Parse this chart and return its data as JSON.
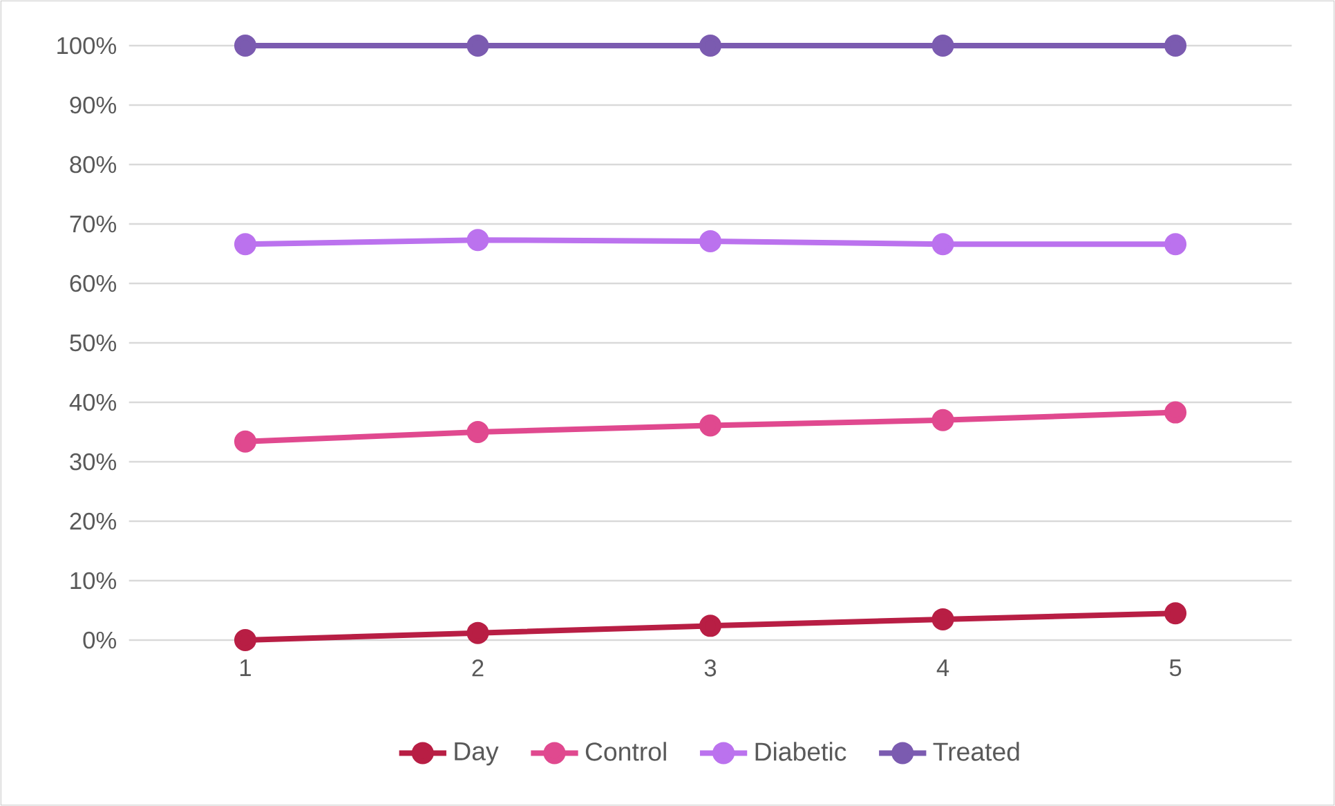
{
  "chart_data": {
    "type": "line",
    "categories": [
      "1",
      "2",
      "3",
      "4",
      "5"
    ],
    "series": [
      {
        "name": "Day",
        "color": "#b81e44",
        "values": [
          0,
          1.2,
          2.4,
          3.5,
          4.5
        ]
      },
      {
        "name": "Control",
        "color": "#e0498f",
        "values": [
          33.4,
          35.0,
          36.1,
          37.0,
          38.3
        ]
      },
      {
        "name": "Diabetic",
        "color": "#bb72ee",
        "values": [
          66.6,
          67.3,
          67.1,
          66.6,
          66.6
        ]
      },
      {
        "name": "Treated",
        "color": "#7b5bb0",
        "values": [
          100,
          100,
          100,
          100,
          100
        ]
      }
    ],
    "ylim": [
      0,
      100
    ],
    "yticks": [
      {
        "value": 0,
        "label": "0%"
      },
      {
        "value": 10,
        "label": "10%"
      },
      {
        "value": 20,
        "label": "20%"
      },
      {
        "value": 30,
        "label": "30%"
      },
      {
        "value": 40,
        "label": "40%"
      },
      {
        "value": 50,
        "label": "50%"
      },
      {
        "value": 60,
        "label": "60%"
      },
      {
        "value": 70,
        "label": "70%"
      },
      {
        "value": 80,
        "label": "80%"
      },
      {
        "value": 90,
        "label": "90%"
      },
      {
        "value": 100,
        "label": "100%"
      }
    ],
    "grid": "y",
    "legend": "bottom",
    "marker": "circle",
    "line_style": "solid"
  }
}
